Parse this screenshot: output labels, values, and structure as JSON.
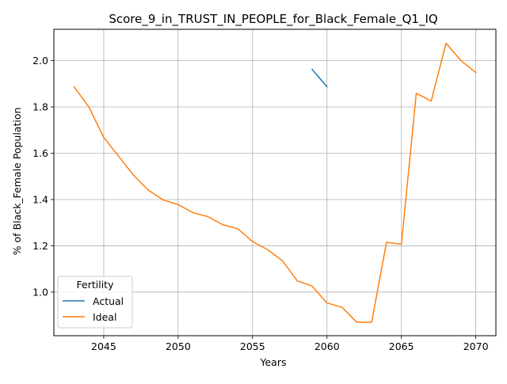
{
  "chart_data": {
    "type": "line",
    "title": "Score_9_in_TRUST_IN_PEOPLE_for_Black_Female_Q1_IQ",
    "xlabel": "Years",
    "ylabel": "% of Black_Female Population",
    "xlim": [
      2041.65,
      2071.35
    ],
    "ylim": [
      0.8117,
      2.1352
    ],
    "xticks": [
      2045,
      2050,
      2055,
      2060,
      2065,
      2070
    ],
    "yticks": [
      1.0,
      1.2,
      1.4,
      1.6,
      1.8,
      2.0
    ],
    "ytick_labels": [
      "1.0",
      "1.2",
      "1.4",
      "1.6",
      "1.8",
      "2.0"
    ],
    "grid": true,
    "legend": {
      "title": "Fertility",
      "position": "lower left"
    },
    "series": [
      {
        "name": "Actual",
        "color": "#1f77b4",
        "x": [
          2059,
          2060
        ],
        "y": [
          1.962,
          1.887
        ]
      },
      {
        "name": "Ideal",
        "color": "#ff7f0e",
        "x": [
          2043,
          2044,
          2045,
          2046,
          2047,
          2048,
          2049,
          2050,
          2051,
          2052,
          2053,
          2054,
          2055,
          2056,
          2057,
          2058,
          2059,
          2060,
          2061,
          2062,
          2063,
          2064,
          2065,
          2066,
          2067,
          2068,
          2069,
          2070
        ],
        "y": [
          1.887,
          1.8,
          1.668,
          1.587,
          1.505,
          1.44,
          1.398,
          1.378,
          1.343,
          1.326,
          1.291,
          1.274,
          1.218,
          1.184,
          1.136,
          1.049,
          1.026,
          0.953,
          0.935,
          0.87,
          0.87,
          1.215,
          1.207,
          1.859,
          1.825,
          2.075,
          2.0,
          1.948
        ]
      }
    ]
  }
}
